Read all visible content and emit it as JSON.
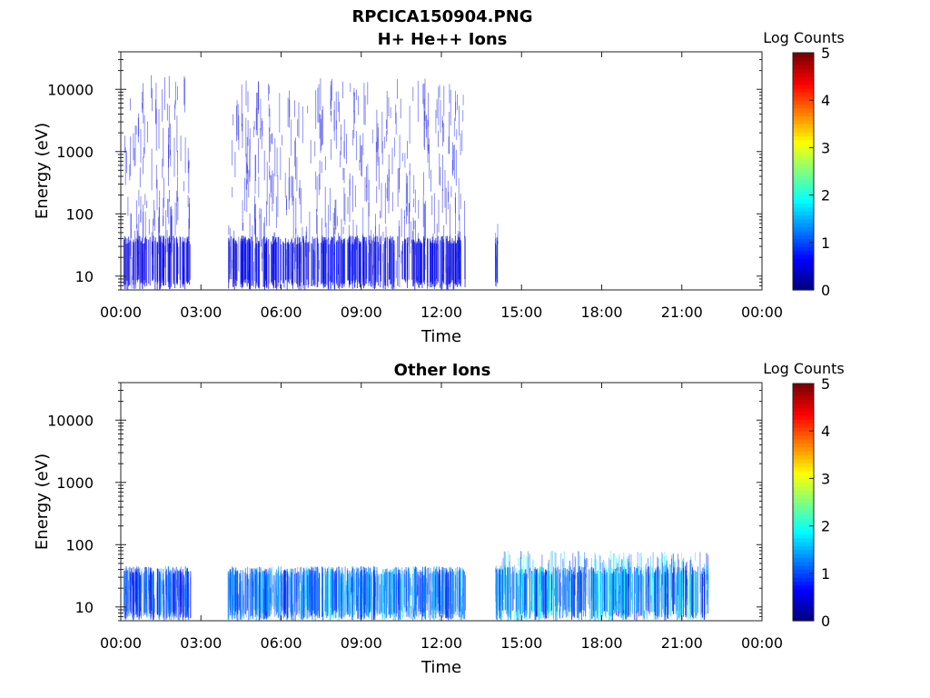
{
  "figure_title": "RPCICA150904.PNG",
  "chart_data": [
    {
      "type": "heatmap",
      "title": "H+ He++ Ions",
      "xlabel": "Time",
      "ylabel": "Energy (eV)",
      "x_ticks": [
        "00:00",
        "03:00",
        "06:00",
        "09:00",
        "12:00",
        "15:00",
        "18:00",
        "21:00",
        "00:00"
      ],
      "x_range_hours": [
        0,
        24
      ],
      "y_ticks": [
        "10",
        "100",
        "1000",
        "10000"
      ],
      "y_scale": "log",
      "y_range": [
        6,
        40000
      ],
      "colorbar": {
        "label": "Log Counts",
        "ticks": [
          "0",
          "1",
          "2",
          "3",
          "4",
          "5"
        ],
        "range": [
          0,
          5
        ],
        "colormap": "jet"
      },
      "data_segments": [
        {
          "start_hour": 0.1,
          "end_hour": 2.6,
          "e_min": 6,
          "e_max": 18000,
          "level_low": 0.3,
          "level_high": 0.7
        },
        {
          "start_hour": 4.0,
          "end_hour": 12.9,
          "e_min": 6,
          "e_max": 15000,
          "level_low": 0.3,
          "level_high": 0.8
        },
        {
          "start_hour": 14.0,
          "end_hour": 14.1,
          "e_min": 6,
          "e_max": 80,
          "level_low": 0.4,
          "level_high": 1.0
        }
      ]
    },
    {
      "type": "heatmap",
      "title": "Other Ions",
      "xlabel": "Time",
      "ylabel": "Energy (eV)",
      "x_ticks": [
        "00:00",
        "03:00",
        "06:00",
        "09:00",
        "12:00",
        "15:00",
        "18:00",
        "21:00",
        "00:00"
      ],
      "x_range_hours": [
        0,
        24
      ],
      "y_ticks": [
        "10",
        "100",
        "1000",
        "10000"
      ],
      "y_scale": "log",
      "y_range": [
        6,
        40000
      ],
      "colorbar": {
        "label": "Log Counts",
        "ticks": [
          "0",
          "1",
          "2",
          "3",
          "4",
          "5"
        ],
        "range": [
          0,
          5
        ],
        "colormap": "jet"
      },
      "data_segments": [
        {
          "start_hour": 0.1,
          "end_hour": 2.6,
          "e_min": 6,
          "e_max": 45,
          "level_low": 0.5,
          "level_high": 1.4
        },
        {
          "start_hour": 4.0,
          "end_hour": 12.9,
          "e_min": 6,
          "e_max": 45,
          "level_low": 0.6,
          "level_high": 1.8
        },
        {
          "start_hour": 14.0,
          "end_hour": 22.0,
          "e_min": 6,
          "e_max": 80,
          "level_low": 0.4,
          "level_high": 2.2
        }
      ]
    }
  ]
}
